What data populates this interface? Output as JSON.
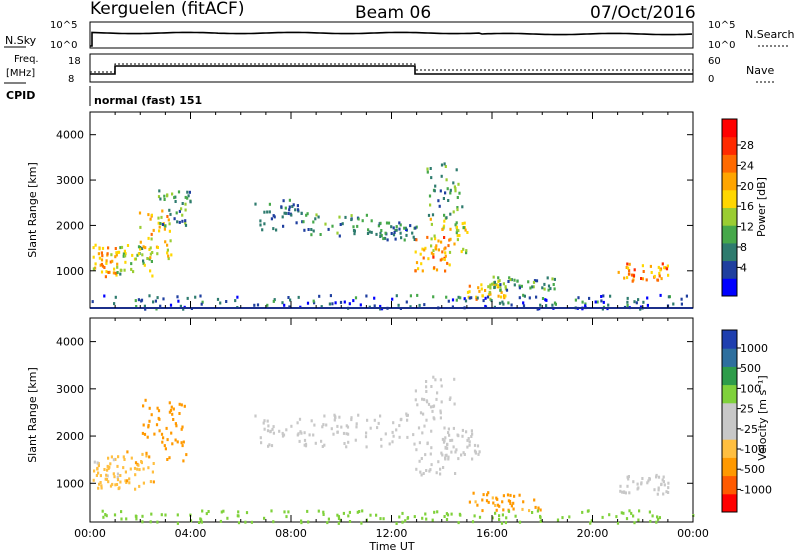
{
  "header": {
    "station": "Kerguelen (fitACF)",
    "beam": "Beam 06",
    "date": "07/Oct/2016"
  },
  "labels": {
    "nsky": "N.Sky",
    "nsearch": "N.Search",
    "freq_line1": "Freq.",
    "freq_line2": "[MHz]",
    "nave": "Nave",
    "cpid": "CPID",
    "program": "normal (fast) 151",
    "xaxis": "Time UT"
  },
  "noise_panel": {
    "left_ticks": [
      "10^5",
      "10^0"
    ],
    "right_ticks": [
      "10^5",
      "10^0"
    ]
  },
  "freq_panel": {
    "left_ticks": [
      "18",
      "8"
    ],
    "right_ticks": [
      "60",
      "0"
    ]
  },
  "colors": {
    "power_scale": [
      "#0000ff",
      "#1f3f9f",
      "#2e7b6e",
      "#46a84a",
      "#9acd32",
      "#ffd700",
      "#ffa500",
      "#ff6a00",
      "#ff2a00",
      "#ff0000"
    ],
    "velocity_scale": [
      "#ff0000",
      "#ff5a00",
      "#ff9900",
      "#ffbf40",
      "#c8c8c8",
      "#c8c8c8",
      "#7fd13b",
      "#2e9c4a",
      "#2e6f9e",
      "#1f3faf"
    ]
  },
  "colorbar_power": {
    "label": "Power [dB]",
    "ticks": [
      "28",
      "24",
      "20",
      "16",
      "12",
      "8",
      "4"
    ]
  },
  "colorbar_velocity": {
    "label": "Velocity [m s⁻¹]",
    "ticks": [
      "1000",
      "500",
      "100",
      "25",
      "-25",
      "-100",
      "-500",
      "-1000"
    ]
  },
  "chart_data": [
    {
      "type": "heatmap",
      "name_printed": "Power",
      "xlabel": "",
      "ylabel": "Slant Range [km]",
      "x_ticks": [
        "00:00",
        "04:00",
        "08:00",
        "12:00",
        "16:00",
        "20:00",
        "00:00"
      ],
      "xlim_hours": [
        0,
        24
      ],
      "y_ticks": [
        1000,
        2000,
        3000,
        4000
      ],
      "ylim_km": [
        180,
        4500
      ],
      "grid": false,
      "regions": [
        {
          "t0": 0.1,
          "t1": 1.1,
          "r0": 900,
          "r1": 1600,
          "level": 20
        },
        {
          "t0": 1.0,
          "t1": 2.5,
          "r0": 900,
          "r1": 1600,
          "level": 14
        },
        {
          "t0": 1.8,
          "t1": 3.2,
          "r0": 1300,
          "r1": 2400,
          "level": 18
        },
        {
          "t0": 2.7,
          "t1": 4.0,
          "r0": 2000,
          "r1": 2800,
          "level": 10
        },
        {
          "t0": 6.5,
          "t1": 8.5,
          "r0": 1900,
          "r1": 2600,
          "level": 8
        },
        {
          "t0": 8.5,
          "t1": 11.5,
          "r0": 1800,
          "r1": 2300,
          "level": 10
        },
        {
          "t0": 11.5,
          "t1": 13.0,
          "r0": 1700,
          "r1": 2100,
          "level": 8
        },
        {
          "t0": 12.9,
          "t1": 14.3,
          "r0": 1000,
          "r1": 1800,
          "level": 22
        },
        {
          "t0": 13.5,
          "t1": 15.0,
          "r0": 1400,
          "r1": 2200,
          "level": 16
        },
        {
          "t0": 13.3,
          "t1": 14.8,
          "r0": 2200,
          "r1": 3400,
          "level": 10
        },
        {
          "t0": 15.0,
          "t1": 16.5,
          "r0": 400,
          "r1": 800,
          "level": 18
        },
        {
          "t0": 16.0,
          "t1": 18.5,
          "r0": 600,
          "r1": 900,
          "level": 10
        },
        {
          "t0": 21.0,
          "t1": 23.0,
          "r0": 800,
          "r1": 1200,
          "level": 22
        },
        {
          "t0": 0.0,
          "t1": 24.0,
          "r0": 180,
          "r1": 500,
          "level": 6
        }
      ]
    },
    {
      "type": "heatmap",
      "name_printed": "Velocity",
      "xlabel": "Time UT",
      "ylabel": "Slant Range [km]",
      "x_ticks": [
        "00:00",
        "04:00",
        "08:00",
        "12:00",
        "16:00",
        "20:00",
        "00:00"
      ],
      "xlim_hours": [
        0,
        24
      ],
      "y_ticks": [
        1000,
        2000,
        3000,
        4000
      ],
      "ylim_km": [
        180,
        4500
      ],
      "grid": false,
      "regions": [
        {
          "t0": 0.1,
          "t1": 1.1,
          "r0": 900,
          "r1": 1600,
          "level": -40
        },
        {
          "t0": 1.0,
          "t1": 2.5,
          "r0": 900,
          "r1": 1700,
          "level": -80
        },
        {
          "t0": 2.0,
          "t1": 3.8,
          "r0": 1500,
          "r1": 2800,
          "level": -300
        },
        {
          "t0": 6.5,
          "t1": 13.0,
          "r0": 1800,
          "r1": 2500,
          "level": 0
        },
        {
          "t0": 12.9,
          "t1": 14.5,
          "r0": 1200,
          "r1": 3300,
          "level": 0
        },
        {
          "t0": 14.0,
          "t1": 15.5,
          "r0": 1500,
          "r1": 2200,
          "level": 0
        },
        {
          "t0": 15.0,
          "t1": 18.0,
          "r0": 450,
          "r1": 850,
          "level": -150
        },
        {
          "t0": 21.0,
          "t1": 23.0,
          "r0": 800,
          "r1": 1200,
          "level": 0
        },
        {
          "t0": 0.0,
          "t1": 24.0,
          "r0": 180,
          "r1": 450,
          "level": 60
        }
      ]
    }
  ]
}
